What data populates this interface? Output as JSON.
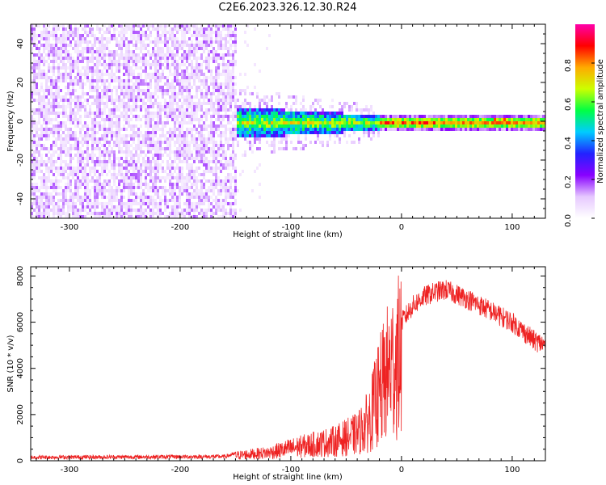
{
  "title": "C2E6.2023.326.12.30.R24",
  "chart_data": [
    {
      "type": "heatmap",
      "xlabel": "Height of straight line (km)",
      "ylabel": "Frequency (Hz)",
      "xlim": [
        -335,
        130
      ],
      "ylim": [
        -50,
        50
      ],
      "x_ticks": [
        -300,
        -200,
        -100,
        0,
        100
      ],
      "y_ticks": [
        -40,
        -20,
        0,
        20,
        40
      ],
      "colorbar": {
        "label": "Normalized spectral amplitude",
        "range": [
          0,
          1
        ],
        "ticks": [
          0.0,
          0.2,
          0.4,
          0.6,
          0.8
        ],
        "colors": [
          "#ffffff",
          "#e6c8ff",
          "#8800ff",
          "#2222ff",
          "#00ccff",
          "#00ff44",
          "#ccff00",
          "#ffaa00",
          "#ff0000",
          "#ff00aa"
        ]
      },
      "regions": [
        {
          "x": [
            -335,
            -150
          ],
          "freq_spread": 50,
          "amplitude": 0.15
        },
        {
          "x": [
            -150,
            -20
          ],
          "freq_spread": 8,
          "amplitude": 0.45
        },
        {
          "x": [
            -20,
            130
          ],
          "freq_spread": 2,
          "amplitude": 0.7
        }
      ]
    },
    {
      "type": "line",
      "xlabel": "Height of straight line (km)",
      "ylabel": "SNR (10 * v/v)",
      "xlim": [
        -335,
        130
      ],
      "ylim": [
        0,
        8400
      ],
      "x_ticks": [
        -300,
        -200,
        -100,
        0,
        100
      ],
      "y_ticks": [
        0,
        2000,
        4000,
        6000,
        8000
      ],
      "line_color": "#ee2222",
      "envelope": {
        "x": [
          -335,
          -160,
          -150,
          -120,
          -100,
          -80,
          -60,
          -40,
          -30,
          -25,
          -20,
          -15,
          -10,
          -5,
          0,
          10,
          20,
          30,
          40,
          60,
          80,
          100,
          110,
          120,
          130
        ],
        "y": [
          150,
          180,
          300,
          450,
          700,
          900,
          1100,
          1500,
          2200,
          3000,
          3800,
          4600,
          5200,
          5600,
          6000,
          6700,
          7100,
          7300,
          7400,
          7000,
          6500,
          6000,
          5600,
          5200,
          5000
        ]
      }
    }
  ]
}
